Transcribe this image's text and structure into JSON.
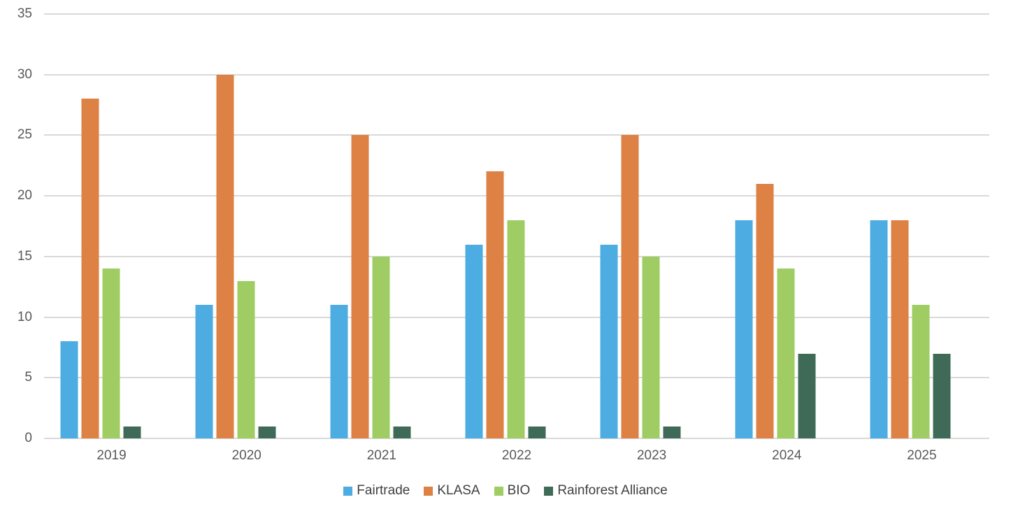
{
  "chart_data": {
    "type": "bar",
    "title": "",
    "xlabel": "",
    "ylabel": "",
    "categories": [
      "2019",
      "2020",
      "2021",
      "2022",
      "2023",
      "2024",
      "2025"
    ],
    "series": [
      {
        "name": "Fairtrade",
        "color": "#4DADE2",
        "values": [
          8,
          11,
          11,
          16,
          16,
          18,
          18
        ]
      },
      {
        "name": "KLASA",
        "color": "#DD8144",
        "values": [
          28,
          30,
          25,
          22,
          25,
          21,
          18
        ]
      },
      {
        "name": "BIO",
        "color": "#9FCD63",
        "values": [
          14,
          13,
          15,
          18,
          15,
          14,
          11
        ]
      },
      {
        "name": "Rainforest Alliance",
        "color": "#3E6A57",
        "values": [
          1,
          1,
          1,
          1,
          1,
          7,
          7
        ]
      }
    ],
    "ylim": [
      0,
      35
    ],
    "yticks": [
      35,
      30,
      25,
      20,
      15,
      10,
      5,
      0
    ],
    "grid": "horizontal",
    "legend_position": "bottom"
  },
  "styles": {
    "grid_color": "#D9D9D9",
    "tick_label_color": "#595959",
    "legend_text_color": "#404040",
    "background": "#FFFFFF"
  }
}
